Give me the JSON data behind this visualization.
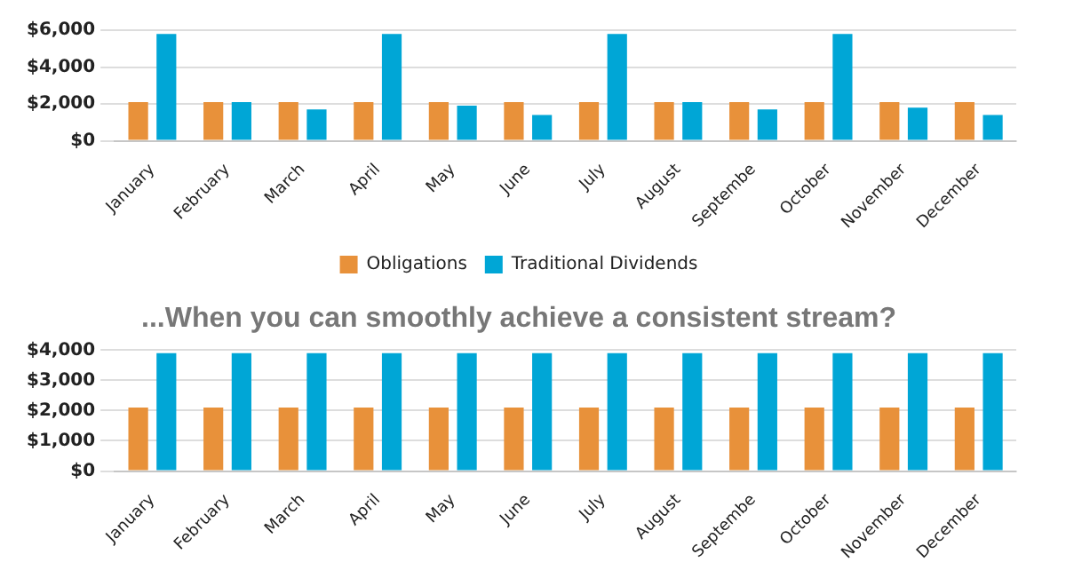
{
  "chart_data": [
    {
      "type": "bar",
      "categories": [
        "January",
        "February",
        "March",
        "April",
        "May",
        "June",
        "July",
        "August",
        "Septembe",
        "October",
        "November",
        "December"
      ],
      "series": [
        {
          "name": "Obligations",
          "color": "#e8913a",
          "values": [
            2100,
            2100,
            2100,
            2100,
            2100,
            2100,
            2100,
            2100,
            2100,
            2100,
            2100,
            2100
          ]
        },
        {
          "name": "Traditional Dividends",
          "color": "#00a6d6",
          "values": [
            5800,
            2100,
            1700,
            5800,
            1900,
            1400,
            5800,
            2100,
            1700,
            5800,
            1800,
            1400
          ]
        }
      ],
      "ylim": [
        0,
        6000
      ],
      "yticks": [
        {
          "value": 0,
          "label": "$0"
        },
        {
          "value": 2000,
          "label": "$2,000"
        },
        {
          "value": 4000,
          "label": "$4,000"
        },
        {
          "value": 6000,
          "label": "$6,000"
        }
      ],
      "grid": "y",
      "legend": "bottom"
    },
    {
      "type": "bar",
      "title": "...When you can smoothly achieve a consistent stream?",
      "categories": [
        "January",
        "February",
        "March",
        "April",
        "May",
        "June",
        "July",
        "August",
        "Septembe",
        "October",
        "November",
        "December"
      ],
      "series": [
        {
          "color": "#e8913a",
          "values": [
            2100,
            2100,
            2100,
            2100,
            2100,
            2100,
            2100,
            2100,
            2100,
            2100,
            2100,
            2100
          ]
        },
        {
          "color": "#00a6d6",
          "values": [
            3900,
            3900,
            3900,
            3900,
            3900,
            3900,
            3900,
            3900,
            3900,
            3900,
            3900,
            3900
          ]
        }
      ],
      "ylim": [
        0,
        4000
      ],
      "yticks": [
        {
          "value": 0,
          "label": "$0"
        },
        {
          "value": 1000,
          "label": "$1,000"
        },
        {
          "value": 2000,
          "label": "$2,000"
        },
        {
          "value": 3000,
          "label": "$3,000"
        },
        {
          "value": 4000,
          "label": "$4,000"
        }
      ],
      "grid": "y",
      "legend": false
    }
  ]
}
